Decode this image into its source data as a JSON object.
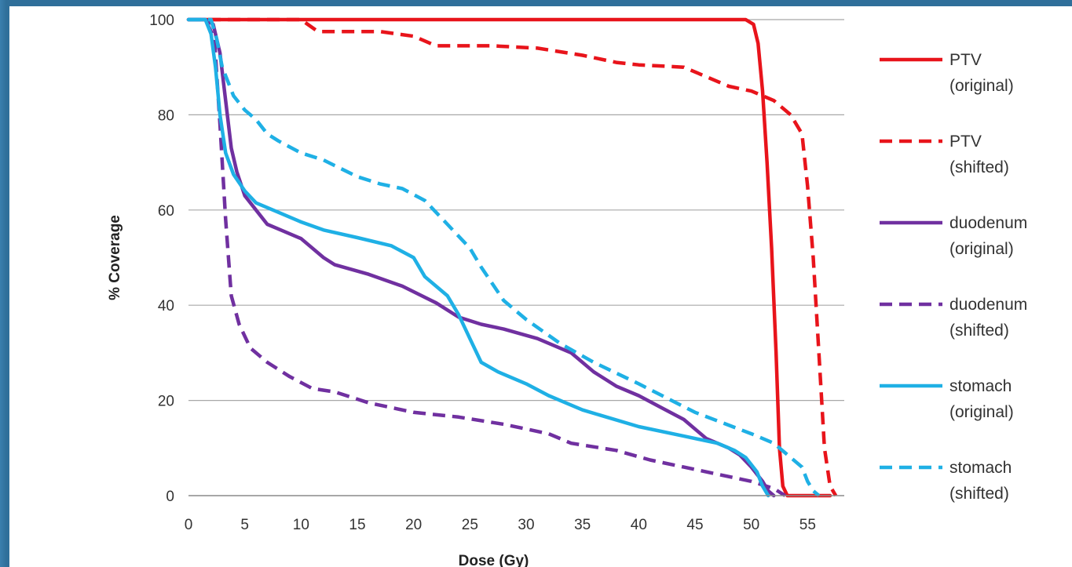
{
  "chart_data": {
    "type": "line",
    "title": "",
    "xlabel": "Dose (Gy)",
    "ylabel": "% Coverage",
    "xlim": [
      0,
      57
    ],
    "ylim": [
      0,
      100
    ],
    "xticks": [
      0,
      5,
      10,
      15,
      20,
      25,
      30,
      35,
      40,
      45,
      50,
      55
    ],
    "yticks": [
      0,
      20,
      40,
      60,
      80,
      100
    ],
    "grid": "horizontal",
    "legend": "right",
    "series": [
      {
        "name": "PTV (original)",
        "line1": "PTV",
        "line2": "(original)",
        "color": "#e8141b",
        "dash": "solid",
        "points": [
          [
            0,
            100
          ],
          [
            49.5,
            100
          ],
          [
            50.2,
            99
          ],
          [
            50.6,
            95
          ],
          [
            51,
            85
          ],
          [
            51.4,
            70
          ],
          [
            51.8,
            52
          ],
          [
            52.2,
            30
          ],
          [
            52.5,
            10
          ],
          [
            52.8,
            2
          ],
          [
            53.2,
            0
          ],
          [
            57,
            0
          ]
        ]
      },
      {
        "name": "PTV (shifted)",
        "line1": "PTV",
        "line2": "(shifted)",
        "color": "#e8141b",
        "dash": "dashed",
        "points": [
          [
            0,
            100
          ],
          [
            10,
            100
          ],
          [
            11.5,
            97.5
          ],
          [
            17,
            97.5
          ],
          [
            20,
            96.5
          ],
          [
            22,
            94.5
          ],
          [
            27,
            94.5
          ],
          [
            31,
            94
          ],
          [
            35,
            92.5
          ],
          [
            38,
            91
          ],
          [
            40,
            90.5
          ],
          [
            44,
            90
          ],
          [
            46,
            88
          ],
          [
            48,
            86
          ],
          [
            50,
            85
          ],
          [
            52,
            83
          ],
          [
            53.5,
            80
          ],
          [
            54.5,
            76
          ],
          [
            55,
            65
          ],
          [
            55.5,
            50
          ],
          [
            56,
            30
          ],
          [
            56.5,
            10
          ],
          [
            57,
            2
          ],
          [
            57.5,
            0
          ]
        ]
      },
      {
        "name": "duodenum (original)",
        "line1": "duodenum",
        "line2": "(original)",
        "color": "#7030a0",
        "dash": "solid",
        "points": [
          [
            0,
            100
          ],
          [
            1.5,
            100
          ],
          [
            2.2,
            99
          ],
          [
            2.8,
            93
          ],
          [
            3.3,
            83
          ],
          [
            3.8,
            73
          ],
          [
            4.3,
            68
          ],
          [
            5,
            63
          ],
          [
            6,
            60
          ],
          [
            7,
            57
          ],
          [
            8,
            56
          ],
          [
            10,
            54
          ],
          [
            12,
            50
          ],
          [
            13,
            48.5
          ],
          [
            16,
            46.5
          ],
          [
            19,
            44
          ],
          [
            22,
            40.5
          ],
          [
            24,
            37.5
          ],
          [
            26,
            36
          ],
          [
            28,
            35
          ],
          [
            31,
            33
          ],
          [
            34,
            30
          ],
          [
            36,
            26
          ],
          [
            38,
            23
          ],
          [
            40,
            21
          ],
          [
            42,
            18.5
          ],
          [
            44,
            16
          ],
          [
            46,
            12
          ],
          [
            48,
            10
          ],
          [
            49,
            8.5
          ],
          [
            50,
            6
          ],
          [
            51,
            3
          ],
          [
            51.5,
            1
          ],
          [
            52,
            0
          ]
        ]
      },
      {
        "name": "duodenum (shifted)",
        "line1": "duodenum",
        "line2": "(shifted)",
        "color": "#7030a0",
        "dash": "dashed",
        "points": [
          [
            0,
            100
          ],
          [
            1.5,
            100
          ],
          [
            2.3,
            96
          ],
          [
            2.8,
            78
          ],
          [
            3.3,
            58
          ],
          [
            3.8,
            42
          ],
          [
            4.5,
            36
          ],
          [
            5.5,
            31
          ],
          [
            7,
            28
          ],
          [
            9,
            25
          ],
          [
            11,
            22.5
          ],
          [
            13,
            21.8
          ],
          [
            16,
            19.5
          ],
          [
            20,
            17.5
          ],
          [
            24,
            16.5
          ],
          [
            28,
            15
          ],
          [
            32,
            13
          ],
          [
            34,
            11
          ],
          [
            38,
            9.5
          ],
          [
            41,
            7.5
          ],
          [
            44,
            6
          ],
          [
            47,
            4.5
          ],
          [
            50,
            3
          ],
          [
            52,
            1.5
          ],
          [
            53,
            0
          ]
        ]
      },
      {
        "name": "stomach (original)",
        "line1": "stomach",
        "line2": "(original)",
        "color": "#1fb0e5",
        "dash": "solid",
        "points": [
          [
            0,
            100
          ],
          [
            1.5,
            100
          ],
          [
            2,
            97
          ],
          [
            2.4,
            90
          ],
          [
            2.8,
            80
          ],
          [
            3.3,
            72
          ],
          [
            4,
            67.5
          ],
          [
            5,
            64
          ],
          [
            6,
            61.5
          ],
          [
            8,
            59.5
          ],
          [
            10,
            57.5
          ],
          [
            12,
            55.8
          ],
          [
            15,
            54.2
          ],
          [
            18,
            52.5
          ],
          [
            20,
            50
          ],
          [
            21,
            46
          ],
          [
            23,
            42
          ],
          [
            24,
            38
          ],
          [
            25,
            33
          ],
          [
            26,
            28
          ],
          [
            27.5,
            26
          ],
          [
            30,
            23.5
          ],
          [
            32,
            21
          ],
          [
            35,
            18
          ],
          [
            40,
            14.5
          ],
          [
            44,
            12.5
          ],
          [
            47,
            11
          ],
          [
            48.5,
            9.5
          ],
          [
            49.5,
            8
          ],
          [
            50.5,
            5
          ],
          [
            51,
            2
          ],
          [
            51.5,
            0
          ]
        ]
      },
      {
        "name": "stomach (shifted)",
        "line1": "stomach",
        "line2": "(shifted)",
        "color": "#1fb0e5",
        "dash": "dashed",
        "points": [
          [
            0,
            100
          ],
          [
            2,
            100
          ],
          [
            2.5,
            96
          ],
          [
            3,
            90
          ],
          [
            4,
            84
          ],
          [
            5,
            81
          ],
          [
            6,
            79
          ],
          [
            7,
            76
          ],
          [
            8,
            74.5
          ],
          [
            10,
            72
          ],
          [
            12,
            70.5
          ],
          [
            15,
            67
          ],
          [
            17,
            65.5
          ],
          [
            19,
            64.5
          ],
          [
            21,
            62
          ],
          [
            23,
            57
          ],
          [
            25,
            52
          ],
          [
            26,
            48
          ],
          [
            28,
            41
          ],
          [
            30,
            37
          ],
          [
            33,
            32
          ],
          [
            36,
            28
          ],
          [
            40,
            23.5
          ],
          [
            45,
            17.5
          ],
          [
            50,
            13
          ],
          [
            52,
            11
          ],
          [
            53.5,
            8
          ],
          [
            54.5,
            6
          ],
          [
            55,
            3
          ],
          [
            55.5,
            1
          ],
          [
            56,
            0
          ]
        ]
      }
    ]
  }
}
